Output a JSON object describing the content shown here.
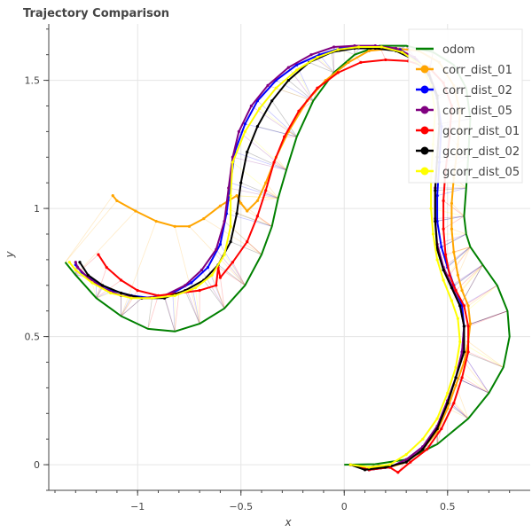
{
  "chart_data": {
    "type": "line",
    "title": "Trajectory Comparison",
    "xlabel": "x",
    "ylabel": "y",
    "xlim": [
      -1.43,
      0.9
    ],
    "ylim": [
      -0.1,
      1.72
    ],
    "grid": true,
    "legend_position": "top-right",
    "x_ticks": [
      -1,
      -0.5,
      0,
      0.5
    ],
    "x_tick_labels": [
      "−1",
      "−0.5",
      "0",
      "0.5"
    ],
    "y_ticks": [
      0,
      0.5,
      1,
      1.5
    ],
    "y_tick_labels": [
      "0",
      "0.5",
      "1",
      "1.5"
    ],
    "series": [
      {
        "name": "odom",
        "color": "#008000",
        "markers": false,
        "points": [
          [
            0,
            0
          ],
          [
            0.15,
            0.002
          ],
          [
            0.3,
            0.02
          ],
          [
            0.45,
            0.08
          ],
          [
            0.6,
            0.18
          ],
          [
            0.7,
            0.28
          ],
          [
            0.77,
            0.38
          ],
          [
            0.8,
            0.5
          ],
          [
            0.79,
            0.6
          ],
          [
            0.74,
            0.7
          ],
          [
            0.67,
            0.78
          ],
          [
            0.61,
            0.85
          ],
          [
            0.59,
            0.9
          ],
          [
            0.58,
            0.97
          ],
          [
            0.59,
            1.08
          ],
          [
            0.6,
            1.2
          ],
          [
            0.61,
            1.35
          ],
          [
            0.59,
            1.47
          ],
          [
            0.53,
            1.56
          ],
          [
            0.43,
            1.61
          ],
          [
            0.3,
            1.635
          ],
          [
            0.17,
            1.635
          ],
          [
            0.05,
            1.6
          ],
          [
            -0.05,
            1.53
          ],
          [
            -0.15,
            1.42
          ],
          [
            -0.23,
            1.28
          ],
          [
            -0.28,
            1.15
          ],
          [
            -0.32,
            1.04
          ],
          [
            -0.35,
            0.93
          ],
          [
            -0.4,
            0.82
          ],
          [
            -0.48,
            0.7
          ],
          [
            -0.58,
            0.61
          ],
          [
            -0.7,
            0.55
          ],
          [
            -0.82,
            0.52
          ],
          [
            -0.95,
            0.53
          ],
          [
            -1.08,
            0.58
          ],
          [
            -1.2,
            0.65
          ],
          [
            -1.3,
            0.74
          ],
          [
            -1.35,
            0.79
          ]
        ]
      },
      {
        "name": "corr_dist_01",
        "color": "#ffa500",
        "markers": true,
        "points": [
          [
            0.03,
            0
          ],
          [
            0.12,
            -0.01
          ],
          [
            0.22,
            -0.01
          ],
          [
            0.3,
            0.01
          ],
          [
            0.38,
            0.06
          ],
          [
            0.45,
            0.13
          ],
          [
            0.5,
            0.22
          ],
          [
            0.54,
            0.31
          ],
          [
            0.58,
            0.4
          ],
          [
            0.6,
            0.48
          ],
          [
            0.61,
            0.55
          ],
          [
            0.6,
            0.62
          ],
          [
            0.57,
            0.68
          ],
          [
            0.55,
            0.74
          ],
          [
            0.53,
            0.83
          ],
          [
            0.52,
            0.92
          ],
          [
            0.52,
            1.02
          ],
          [
            0.53,
            1.12
          ],
          [
            0.55,
            1.25
          ],
          [
            0.56,
            1.38
          ],
          [
            0.53,
            1.48
          ],
          [
            0.46,
            1.57
          ],
          [
            0.36,
            1.615
          ],
          [
            0.24,
            1.625
          ],
          [
            0.12,
            1.615
          ],
          [
            0.02,
            1.57
          ],
          [
            -0.09,
            1.5
          ],
          [
            -0.18,
            1.42
          ],
          [
            -0.27,
            1.3
          ],
          [
            -0.33,
            1.2
          ],
          [
            -0.38,
            1.1
          ],
          [
            -0.42,
            1.03
          ],
          [
            -0.47,
            0.99
          ],
          [
            -0.5,
            1.02
          ],
          [
            -0.52,
            1.05
          ],
          [
            -0.6,
            1.01
          ],
          [
            -0.68,
            0.96
          ],
          [
            -0.75,
            0.93
          ],
          [
            -0.82,
            0.93
          ],
          [
            -0.91,
            0.95
          ],
          [
            -1.01,
            0.99
          ],
          [
            -1.1,
            1.03
          ],
          [
            -1.12,
            1.05
          ]
        ]
      },
      {
        "name": "corr_dist_02",
        "color": "#0000ff",
        "markers": true,
        "points": [
          [
            0.03,
            0
          ],
          [
            0.12,
            -0.02
          ],
          [
            0.22,
            -0.01
          ],
          [
            0.3,
            0.02
          ],
          [
            0.38,
            0.07
          ],
          [
            0.45,
            0.15
          ],
          [
            0.5,
            0.25
          ],
          [
            0.54,
            0.34
          ],
          [
            0.57,
            0.44
          ],
          [
            0.58,
            0.54
          ],
          [
            0.57,
            0.62
          ],
          [
            0.53,
            0.7
          ],
          [
            0.5,
            0.77
          ],
          [
            0.47,
            0.85
          ],
          [
            0.45,
            0.95
          ],
          [
            0.45,
            1.05
          ],
          [
            0.46,
            1.18
          ],
          [
            0.47,
            1.32
          ],
          [
            0.45,
            1.43
          ],
          [
            0.41,
            1.52
          ],
          [
            0.35,
            1.58
          ],
          [
            0.27,
            1.62
          ],
          [
            0.18,
            1.625
          ],
          [
            0.08,
            1.63
          ],
          [
            -0.02,
            1.625
          ],
          [
            -0.12,
            1.6
          ],
          [
            -0.23,
            1.56
          ],
          [
            -0.33,
            1.5
          ],
          [
            -0.42,
            1.42
          ],
          [
            -0.48,
            1.33
          ],
          [
            -0.53,
            1.22
          ],
          [
            -0.55,
            1.1
          ],
          [
            -0.57,
            0.98
          ],
          [
            -0.6,
            0.86
          ],
          [
            -0.66,
            0.77
          ],
          [
            -0.74,
            0.71
          ],
          [
            -0.83,
            0.67
          ],
          [
            -0.93,
            0.65
          ],
          [
            -1.03,
            0.66
          ],
          [
            -1.12,
            0.68
          ],
          [
            -1.2,
            0.71
          ],
          [
            -1.27,
            0.75
          ],
          [
            -1.3,
            0.78
          ]
        ]
      },
      {
        "name": "corr_dist_05",
        "color": "#800080",
        "markers": true,
        "points": [
          [
            0.03,
            0
          ],
          [
            0.12,
            -0.02
          ],
          [
            0.22,
            -0.01
          ],
          [
            0.3,
            0.02
          ],
          [
            0.38,
            0.07
          ],
          [
            0.45,
            0.15
          ],
          [
            0.5,
            0.25
          ],
          [
            0.54,
            0.34
          ],
          [
            0.57,
            0.44
          ],
          [
            0.58,
            0.54
          ],
          [
            0.56,
            0.62
          ],
          [
            0.52,
            0.7
          ],
          [
            0.48,
            0.77
          ],
          [
            0.45,
            0.86
          ],
          [
            0.44,
            0.96
          ],
          [
            0.44,
            1.08
          ],
          [
            0.45,
            1.2
          ],
          [
            0.46,
            1.33
          ],
          [
            0.45,
            1.44
          ],
          [
            0.41,
            1.53
          ],
          [
            0.34,
            1.59
          ],
          [
            0.25,
            1.625
          ],
          [
            0.15,
            1.635
          ],
          [
            0.05,
            1.635
          ],
          [
            -0.05,
            1.63
          ],
          [
            -0.16,
            1.6
          ],
          [
            -0.27,
            1.55
          ],
          [
            -0.37,
            1.48
          ],
          [
            -0.45,
            1.4
          ],
          [
            -0.51,
            1.3
          ],
          [
            -0.54,
            1.2
          ],
          [
            -0.56,
            1.08
          ],
          [
            -0.58,
            0.95
          ],
          [
            -0.62,
            0.84
          ],
          [
            -0.69,
            0.76
          ],
          [
            -0.77,
            0.7
          ],
          [
            -0.87,
            0.66
          ],
          [
            -0.98,
            0.65
          ],
          [
            -1.08,
            0.66
          ],
          [
            -1.17,
            0.69
          ],
          [
            -1.24,
            0.73
          ],
          [
            -1.29,
            0.77
          ],
          [
            -1.3,
            0.79
          ]
        ]
      },
      {
        "name": "gcorr_dist_01",
        "color": "#ff0000",
        "markers": true,
        "points": [
          [
            0.03,
            0
          ],
          [
            0.12,
            -0.02
          ],
          [
            0.22,
            -0.01
          ],
          [
            0.26,
            -0.03
          ],
          [
            0.32,
            0.01
          ],
          [
            0.4,
            0.06
          ],
          [
            0.47,
            0.14
          ],
          [
            0.53,
            0.24
          ],
          [
            0.57,
            0.34
          ],
          [
            0.6,
            0.44
          ],
          [
            0.6,
            0.54
          ],
          [
            0.58,
            0.62
          ],
          [
            0.54,
            0.68
          ],
          [
            0.51,
            0.74
          ],
          [
            0.49,
            0.82
          ],
          [
            0.48,
            0.92
          ],
          [
            0.48,
            1.03
          ],
          [
            0.49,
            1.15
          ],
          [
            0.51,
            1.28
          ],
          [
            0.52,
            1.4
          ],
          [
            0.48,
            1.49
          ],
          [
            0.41,
            1.55
          ],
          [
            0.31,
            1.575
          ],
          [
            0.2,
            1.58
          ],
          [
            0.08,
            1.57
          ],
          [
            -0.03,
            1.53
          ],
          [
            -0.13,
            1.47
          ],
          [
            -0.22,
            1.38
          ],
          [
            -0.29,
            1.28
          ],
          [
            -0.34,
            1.18
          ],
          [
            -0.38,
            1.07
          ],
          [
            -0.42,
            0.97
          ],
          [
            -0.47,
            0.87
          ],
          [
            -0.54,
            0.79
          ],
          [
            -0.6,
            0.73
          ],
          [
            -0.61,
            0.77
          ],
          [
            -0.62,
            0.7
          ],
          [
            -0.7,
            0.68
          ],
          [
            -0.8,
            0.67
          ],
          [
            -0.9,
            0.66
          ],
          [
            -1,
            0.68
          ],
          [
            -1.08,
            0.72
          ],
          [
            -1.15,
            0.77
          ],
          [
            -1.19,
            0.82
          ]
        ]
      },
      {
        "name": "gcorr_dist_02",
        "color": "#000000",
        "markers": true,
        "points": [
          [
            0.03,
            0
          ],
          [
            0.1,
            -0.02
          ],
          [
            0.2,
            -0.01
          ],
          [
            0.3,
            0.01
          ],
          [
            0.38,
            0.06
          ],
          [
            0.45,
            0.14
          ],
          [
            0.5,
            0.24
          ],
          [
            0.54,
            0.34
          ],
          [
            0.58,
            0.44
          ],
          [
            0.58,
            0.54
          ],
          [
            0.56,
            0.62
          ],
          [
            0.52,
            0.69
          ],
          [
            0.48,
            0.76
          ],
          [
            0.45,
            0.84
          ],
          [
            0.44,
            0.95
          ],
          [
            0.44,
            1.07
          ],
          [
            0.45,
            1.2
          ],
          [
            0.46,
            1.33
          ],
          [
            0.45,
            1.44
          ],
          [
            0.41,
            1.52
          ],
          [
            0.34,
            1.58
          ],
          [
            0.25,
            1.615
          ],
          [
            0.15,
            1.625
          ],
          [
            0.05,
            1.625
          ],
          [
            -0.06,
            1.61
          ],
          [
            -0.17,
            1.57
          ],
          [
            -0.27,
            1.5
          ],
          [
            -0.35,
            1.42
          ],
          [
            -0.42,
            1.32
          ],
          [
            -0.47,
            1.22
          ],
          [
            -0.5,
            1.1
          ],
          [
            -0.52,
            0.98
          ],
          [
            -0.55,
            0.87
          ],
          [
            -0.61,
            0.78
          ],
          [
            -0.68,
            0.72
          ],
          [
            -0.77,
            0.68
          ],
          [
            -0.87,
            0.65
          ],
          [
            -0.98,
            0.65
          ],
          [
            -1.08,
            0.67
          ],
          [
            -1.17,
            0.7
          ],
          [
            -1.24,
            0.74
          ],
          [
            -1.28,
            0.79
          ]
        ]
      },
      {
        "name": "gcorr_dist_05",
        "color": "#ffff00",
        "markers": true,
        "points": [
          [
            0.03,
            0
          ],
          [
            0.12,
            -0.01
          ],
          [
            0.22,
            0
          ],
          [
            0.3,
            0.04
          ],
          [
            0.38,
            0.1
          ],
          [
            0.45,
            0.18
          ],
          [
            0.5,
            0.28
          ],
          [
            0.54,
            0.38
          ],
          [
            0.56,
            0.48
          ],
          [
            0.55,
            0.57
          ],
          [
            0.52,
            0.64
          ],
          [
            0.48,
            0.72
          ],
          [
            0.45,
            0.8
          ],
          [
            0.43,
            0.9
          ],
          [
            0.42,
            1
          ],
          [
            0.42,
            1.12
          ],
          [
            0.43,
            1.25
          ],
          [
            0.44,
            1.38
          ],
          [
            0.42,
            1.48
          ],
          [
            0.37,
            1.56
          ],
          [
            0.28,
            1.61
          ],
          [
            0.18,
            1.63
          ],
          [
            0.07,
            1.63
          ],
          [
            -0.03,
            1.62
          ],
          [
            -0.13,
            1.59
          ],
          [
            -0.23,
            1.54
          ],
          [
            -0.33,
            1.47
          ],
          [
            -0.41,
            1.39
          ],
          [
            -0.48,
            1.3
          ],
          [
            -0.54,
            1.18
          ],
          [
            -0.55,
            1.05
          ],
          [
            -0.55,
            0.93
          ],
          [
            -0.58,
            0.82
          ],
          [
            -0.64,
            0.74
          ],
          [
            -0.72,
            0.69
          ],
          [
            -0.82,
            0.66
          ],
          [
            -0.93,
            0.65
          ],
          [
            -1.03,
            0.65
          ],
          [
            -1.13,
            0.67
          ],
          [
            -1.22,
            0.71
          ],
          [
            -1.3,
            0.76
          ],
          [
            -1.33,
            0.79
          ]
        ]
      }
    ]
  }
}
